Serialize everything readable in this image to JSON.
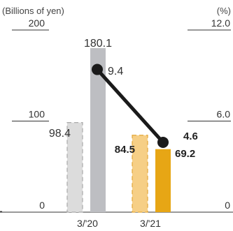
{
  "chart_data": {
    "type": "bar+line",
    "categories": [
      "3/'20",
      "3/'21"
    ],
    "left_axis": {
      "unit_label": "(Billions of yen)",
      "ticks": [
        {
          "value": 0,
          "label": "0"
        },
        {
          "value": 100,
          "label": "100"
        },
        {
          "value": 200,
          "label": "200"
        }
      ],
      "range": [
        0,
        200
      ]
    },
    "right_axis": {
      "unit_label": "(%)",
      "ticks": [
        {
          "value": 0,
          "label": "0"
        },
        {
          "value": 6,
          "label": "6.0"
        },
        {
          "value": 12,
          "label": "12.0"
        }
      ],
      "range": [
        0,
        12
      ]
    },
    "bar_series": [
      {
        "values": [
          98.4,
          84.5
        ],
        "labels": [
          "98.4",
          "84.5"
        ],
        "style": "dashed",
        "colors": [
          "#dcdcdc",
          "#f6cf86"
        ],
        "edge_colors": [
          "#a9a9a9",
          "#e3a637"
        ]
      },
      {
        "values": [
          180.1,
          69.2
        ],
        "labels": [
          "180.1",
          "69.2"
        ],
        "style": "solid",
        "colors": [
          "#bdbec2",
          "#e7a615"
        ]
      }
    ],
    "line_series": {
      "values": [
        9.4,
        4.6
      ],
      "labels": [
        "9.4",
        "4.6"
      ],
      "axis": "right",
      "color": "#1a1a1a"
    },
    "grid": false
  }
}
